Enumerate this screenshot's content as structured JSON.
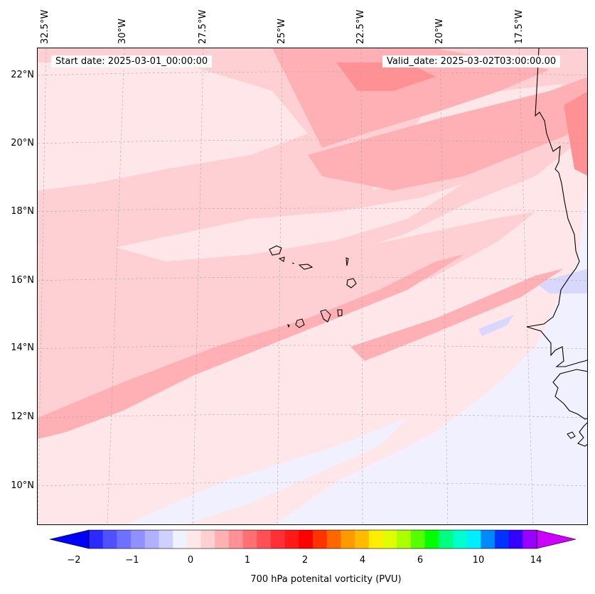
{
  "header": {
    "start_date": "Start date: 2025-03-01_00:00:00",
    "valid_date": "Valid_date: 2025-03-02T03:00:00.00"
  },
  "map": {
    "lon_labels": [
      "32.5°W",
      "30°W",
      "27.5°W",
      "25°W",
      "22.5°W",
      "20°W",
      "17.5°W"
    ],
    "lat_labels": [
      "22°N",
      "20°N",
      "18°N",
      "16°N",
      "14°N",
      "12°N",
      "10°N"
    ],
    "background_color": "#ffe6e8",
    "features": [
      "Cape Verde islands",
      "West African coastline"
    ]
  },
  "colorbar": {
    "label": "700 hPa potenital vorticity (PVU)",
    "ticks": [
      "−2",
      "−1",
      "0",
      "1",
      "2",
      "4",
      "6",
      "10",
      "14"
    ],
    "colors": [
      "#0000ff",
      "#2a2aff",
      "#5050ff",
      "#7070ff",
      "#9090ff",
      "#b0b0ff",
      "#d0d0ff",
      "#f0f0ff",
      "#ffe6e8",
      "#ffd0d2",
      "#ffb0b3",
      "#ff9095",
      "#ff7075",
      "#ff5055",
      "#ff3035",
      "#ff1a1a",
      "#ff0000",
      "#ff3300",
      "#ff6600",
      "#ff9900",
      "#ffbb00",
      "#ffee00",
      "#ddff00",
      "#aaff00",
      "#55ff00",
      "#00ff00",
      "#00ff80",
      "#00ffcc",
      "#00eeff",
      "#0088ff",
      "#0033ff",
      "#3300ff",
      "#9900ff",
      "#cc00ff"
    ]
  }
}
